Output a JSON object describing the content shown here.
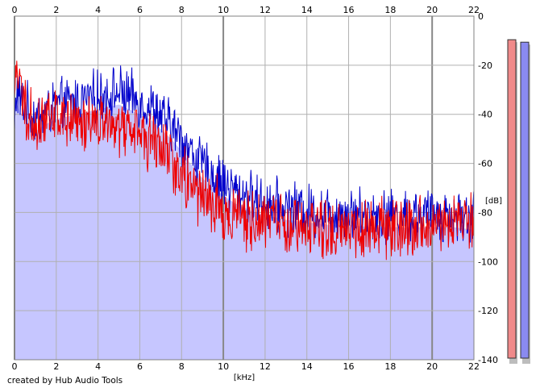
{
  "chart_data": {
    "type": "area",
    "xlabel": "[kHz]",
    "ylabel": "[dB]",
    "xlim": [
      0,
      22
    ],
    "ylim": [
      -140,
      0
    ],
    "x_ticks": [
      0,
      2,
      4,
      6,
      8,
      10,
      12,
      14,
      16,
      18,
      20,
      22
    ],
    "y_ticks": [
      0,
      -20,
      -40,
      -60,
      -80,
      -100,
      -120,
      -140
    ],
    "y_tick_labels": [
      "0",
      "-20",
      "-40",
      "-60",
      "-80",
      "-100",
      "-120",
      "-140"
    ],
    "grid": true,
    "series": [
      {
        "color": "#0000cc",
        "fill": "#c6c6ff",
        "x": [
          0,
          0.1,
          0.2,
          0.4,
          0.6,
          0.8,
          1,
          1.5,
          2,
          2.5,
          3,
          3.5,
          4,
          4.5,
          5,
          5.5,
          6,
          6.5,
          7,
          7.5,
          8,
          8.5,
          9,
          9.5,
          10,
          10.5,
          11,
          11.5,
          12,
          13,
          14,
          15,
          16,
          17,
          18,
          19,
          20,
          21,
          22
        ],
        "y": [
          -48,
          -28,
          -33,
          -36,
          -38,
          -40,
          -42,
          -39,
          -37,
          -36,
          -35,
          -34,
          -33,
          -32,
          -31,
          -33,
          -35,
          -37,
          -41,
          -45,
          -50,
          -56,
          -61,
          -65,
          -68,
          -71,
          -73,
          -75,
          -76,
          -78,
          -79,
          -80,
          -80,
          -81,
          -81,
          -81,
          -81,
          -81,
          -82
        ]
      },
      {
        "color": "#ee0000",
        "x": [
          0,
          0.1,
          0.2,
          0.4,
          0.6,
          0.8,
          1,
          1.5,
          2,
          2.5,
          3,
          3.5,
          4,
          4.5,
          5,
          5.5,
          6,
          6.5,
          7,
          7.5,
          8,
          8.5,
          9,
          9.5,
          10,
          10.5,
          11,
          11.5,
          12,
          13,
          14,
          15,
          16,
          17,
          18,
          19,
          20,
          21,
          22
        ],
        "y": [
          -38,
          -16,
          -28,
          -34,
          -38,
          -42,
          -44,
          -43,
          -42,
          -42,
          -42,
          -43,
          -43,
          -44,
          -45,
          -47,
          -49,
          -52,
          -55,
          -59,
          -64,
          -70,
          -74,
          -77,
          -79,
          -81,
          -83,
          -84,
          -85,
          -86,
          -86,
          -87,
          -86,
          -86,
          -86,
          -86,
          -85,
          -84,
          -84
        ]
      }
    ],
    "level_meters": [
      {
        "color": "#f08a8a",
        "level_db": -5
      },
      {
        "color": "#8a8af0",
        "level_db": -6
      }
    ]
  },
  "footer": {
    "credit": "created by Hub Audio Tools"
  }
}
